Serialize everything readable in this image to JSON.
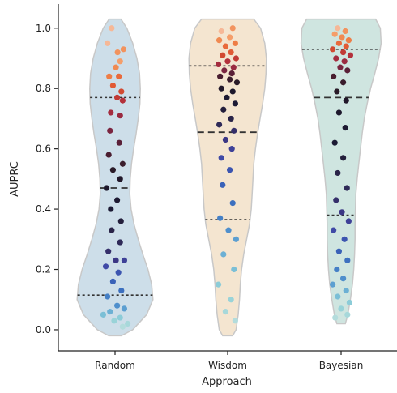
{
  "chart_data": {
    "type": "scatter",
    "subtype": "violin-strip",
    "title": "",
    "xlabel": "Approach",
    "ylabel": "AUPRC",
    "ylim": [
      -0.07,
      1.08
    ],
    "yticks": [
      0.0,
      0.2,
      0.4,
      0.6,
      0.8,
      1.0
    ],
    "ytick_labels": [
      "0.0",
      "0.2",
      "0.4",
      "0.6",
      "0.8",
      "1.0"
    ],
    "categories": [
      "Random",
      "Wisdom",
      "Bayesian"
    ],
    "grid": false,
    "legend": "none",
    "colors": {
      "Random": "#cddee9",
      "Wisdom": "#f4e5d0",
      "Bayesian": "#cfe5e0",
      "violin_edge": "#c8c8c8",
      "quartile_line": "#333333",
      "axis": "#222222"
    },
    "series": [
      {
        "category": "Random",
        "violin_min": -0.02,
        "violin_max": 1.03,
        "quartiles": [
          0.115,
          0.47,
          0.77
        ],
        "profile": [
          [
            -0.02,
            0.15
          ],
          [
            0.0,
            0.42
          ],
          [
            0.05,
            0.75
          ],
          [
            0.1,
            0.9
          ],
          [
            0.15,
            0.87
          ],
          [
            0.2,
            0.78
          ],
          [
            0.25,
            0.66
          ],
          [
            0.3,
            0.55
          ],
          [
            0.35,
            0.45
          ],
          [
            0.4,
            0.38
          ],
          [
            0.45,
            0.35
          ],
          [
            0.5,
            0.36
          ],
          [
            0.55,
            0.39
          ],
          [
            0.6,
            0.44
          ],
          [
            0.65,
            0.5
          ],
          [
            0.7,
            0.55
          ],
          [
            0.75,
            0.59
          ],
          [
            0.8,
            0.6
          ],
          [
            0.85,
            0.58
          ],
          [
            0.9,
            0.52
          ],
          [
            0.95,
            0.42
          ],
          [
            1.0,
            0.28
          ],
          [
            1.03,
            0.14
          ]
        ],
        "points": [
          [
            -0.08,
            1.0,
            "#f6b897"
          ],
          [
            0.06,
            0.92,
            "#f2935e"
          ],
          [
            0.12,
            0.89,
            "#f59e6a"
          ],
          [
            -0.18,
            0.95,
            "#f6b897"
          ],
          [
            0.2,
            0.93,
            "#f2935e"
          ],
          [
            0.02,
            0.87,
            "#f08a52"
          ],
          [
            -0.14,
            0.84,
            "#ee7d46"
          ],
          [
            0.09,
            0.84,
            "#e96a3c"
          ],
          [
            -0.05,
            0.81,
            "#e15a35"
          ],
          [
            0.15,
            0.79,
            "#d24a32"
          ],
          [
            0.05,
            0.77,
            "#c13a35"
          ],
          [
            0.18,
            0.76,
            "#b3313b"
          ],
          [
            -0.1,
            0.72,
            "#a42c3f"
          ],
          [
            0.12,
            0.71,
            "#9a2a40"
          ],
          [
            -0.12,
            0.66,
            "#7a2540"
          ],
          [
            0.1,
            0.62,
            "#5a2038"
          ],
          [
            -0.15,
            0.58,
            "#4a1e30"
          ],
          [
            0.18,
            0.55,
            "#3a1d2c"
          ],
          [
            -0.05,
            0.53,
            "#2a1b28"
          ],
          [
            0.12,
            0.5,
            "#22182a"
          ],
          [
            -0.2,
            0.47,
            "#1d182c"
          ],
          [
            0.05,
            0.43,
            "#1e1a32"
          ],
          [
            -0.1,
            0.4,
            "#1c1a34"
          ],
          [
            0.14,
            0.36,
            "#241f3c"
          ],
          [
            -0.08,
            0.33,
            "#2a2448"
          ],
          [
            0.12,
            0.29,
            "#2f2a58"
          ],
          [
            -0.16,
            0.26,
            "#352f6a"
          ],
          [
            0.02,
            0.23,
            "#3b3785"
          ],
          [
            0.22,
            0.23,
            "#3e4198"
          ],
          [
            -0.22,
            0.21,
            "#404aa6"
          ],
          [
            0.08,
            0.19,
            "#3c55b0"
          ],
          [
            -0.05,
            0.16,
            "#3a62b8"
          ],
          [
            0.15,
            0.13,
            "#3d70bf"
          ],
          [
            -0.18,
            0.11,
            "#4580c6"
          ],
          [
            0.05,
            0.08,
            "#4f8fcc"
          ],
          [
            0.22,
            0.07,
            "#5c9fd1"
          ],
          [
            -0.12,
            0.06,
            "#6cb0d4"
          ],
          [
            -0.28,
            0.05,
            "#7bbfd6"
          ],
          [
            0.12,
            0.04,
            "#8cccd8"
          ],
          [
            -0.02,
            0.03,
            "#99d3d8"
          ],
          [
            0.3,
            0.02,
            "#a7d8da"
          ],
          [
            0.18,
            0.01,
            "#b3dcdc"
          ]
        ]
      },
      {
        "category": "Wisdom",
        "violin_min": -0.02,
        "violin_max": 1.03,
        "quartiles": [
          0.365,
          0.655,
          0.875
        ],
        "profile": [
          [
            -0.02,
            0.12
          ],
          [
            0.0,
            0.2
          ],
          [
            0.05,
            0.25
          ],
          [
            0.1,
            0.28
          ],
          [
            0.15,
            0.3
          ],
          [
            0.2,
            0.33
          ],
          [
            0.25,
            0.38
          ],
          [
            0.3,
            0.45
          ],
          [
            0.35,
            0.52
          ],
          [
            0.4,
            0.56
          ],
          [
            0.45,
            0.58
          ],
          [
            0.5,
            0.6
          ],
          [
            0.55,
            0.62
          ],
          [
            0.6,
            0.66
          ],
          [
            0.65,
            0.71
          ],
          [
            0.7,
            0.77
          ],
          [
            0.75,
            0.83
          ],
          [
            0.8,
            0.88
          ],
          [
            0.85,
            0.91
          ],
          [
            0.9,
            0.92
          ],
          [
            0.95,
            0.88
          ],
          [
            1.0,
            0.78
          ],
          [
            1.03,
            0.62
          ]
        ],
        "points": [
          [
            -0.15,
            0.99,
            "#f6b897"
          ],
          [
            0.12,
            1.0,
            "#f2935e"
          ],
          [
            0.05,
            0.97,
            "#f59e6a"
          ],
          [
            -0.2,
            0.96,
            "#f08a52"
          ],
          [
            0.18,
            0.95,
            "#ee7d46"
          ],
          [
            -0.05,
            0.94,
            "#e96a3c"
          ],
          [
            0.08,
            0.92,
            "#e15a35"
          ],
          [
            -0.12,
            0.91,
            "#d24a32"
          ],
          [
            0.2,
            0.9,
            "#c13a35"
          ],
          [
            0.0,
            0.89,
            "#b3313b"
          ],
          [
            -0.22,
            0.88,
            "#a42c3f"
          ],
          [
            0.14,
            0.87,
            "#9a2a40"
          ],
          [
            -0.08,
            0.86,
            "#7a2540"
          ],
          [
            0.1,
            0.85,
            "#5a2038"
          ],
          [
            -0.18,
            0.84,
            "#4a1e30"
          ],
          [
            0.05,
            0.83,
            "#3a1d2c"
          ],
          [
            0.22,
            0.82,
            "#2a1b28"
          ],
          [
            -0.15,
            0.8,
            "#22182a"
          ],
          [
            0.12,
            0.79,
            "#1d182c"
          ],
          [
            -0.02,
            0.77,
            "#1e1a32"
          ],
          [
            0.18,
            0.75,
            "#1c1a34"
          ],
          [
            -0.1,
            0.73,
            "#241f3c"
          ],
          [
            0.08,
            0.7,
            "#2a2448"
          ],
          [
            -0.2,
            0.68,
            "#2f2a58"
          ],
          [
            0.15,
            0.66,
            "#352f6a"
          ],
          [
            -0.05,
            0.63,
            "#3b3785"
          ],
          [
            0.1,
            0.6,
            "#3e4198"
          ],
          [
            -0.15,
            0.57,
            "#404aa6"
          ],
          [
            0.05,
            0.53,
            "#3c55b0"
          ],
          [
            -0.12,
            0.48,
            "#3a62b8"
          ],
          [
            0.12,
            0.42,
            "#3d70bf"
          ],
          [
            -0.18,
            0.37,
            "#4580c6"
          ],
          [
            0.02,
            0.33,
            "#4f8fcc"
          ],
          [
            0.2,
            0.3,
            "#5c9fd1"
          ],
          [
            -0.1,
            0.25,
            "#6cb0d4"
          ],
          [
            0.15,
            0.2,
            "#7bbfd6"
          ],
          [
            -0.22,
            0.15,
            "#8cccd8"
          ],
          [
            0.08,
            0.1,
            "#99d3d8"
          ],
          [
            -0.05,
            0.06,
            "#a7d8da"
          ],
          [
            0.18,
            0.03,
            "#b3dcdc"
          ]
        ]
      },
      {
        "category": "Bayesian",
        "violin_min": 0.02,
        "violin_max": 1.03,
        "quartiles": [
          0.38,
          0.77,
          0.93
        ],
        "profile": [
          [
            0.02,
            0.1
          ],
          [
            0.05,
            0.16
          ],
          [
            0.1,
            0.22
          ],
          [
            0.15,
            0.27
          ],
          [
            0.2,
            0.3
          ],
          [
            0.25,
            0.32
          ],
          [
            0.3,
            0.33
          ],
          [
            0.35,
            0.33
          ],
          [
            0.4,
            0.34
          ],
          [
            0.45,
            0.35
          ],
          [
            0.5,
            0.38
          ],
          [
            0.55,
            0.42
          ],
          [
            0.6,
            0.46
          ],
          [
            0.65,
            0.5
          ],
          [
            0.7,
            0.55
          ],
          [
            0.75,
            0.62
          ],
          [
            0.8,
            0.7
          ],
          [
            0.85,
            0.8
          ],
          [
            0.9,
            0.89
          ],
          [
            0.95,
            0.95
          ],
          [
            1.0,
            0.93
          ],
          [
            1.03,
            0.82
          ]
        ],
        "points": [
          [
            -0.08,
            1.0,
            "#f6b897"
          ],
          [
            0.1,
            0.99,
            "#f2935e"
          ],
          [
            -0.15,
            0.98,
            "#f59e6a"
          ],
          [
            0.02,
            0.97,
            "#f08a52"
          ],
          [
            0.18,
            0.96,
            "#ee7d46"
          ],
          [
            -0.05,
            0.95,
            "#e96a3c"
          ],
          [
            0.12,
            0.94,
            "#e15a35"
          ],
          [
            -0.2,
            0.93,
            "#d24a32"
          ],
          [
            0.05,
            0.92,
            "#c13a35"
          ],
          [
            0.22,
            0.91,
            "#b3313b"
          ],
          [
            -0.12,
            0.9,
            "#a42c3f"
          ],
          [
            0.08,
            0.89,
            "#9a2a40"
          ],
          [
            -0.02,
            0.87,
            "#7a2540"
          ],
          [
            0.15,
            0.86,
            "#5a2038"
          ],
          [
            -0.18,
            0.84,
            "#4a1e30"
          ],
          [
            0.05,
            0.82,
            "#3a1d2c"
          ],
          [
            -0.1,
            0.79,
            "#2a1b28"
          ],
          [
            0.12,
            0.76,
            "#22182a"
          ],
          [
            -0.05,
            0.72,
            "#1d182c"
          ],
          [
            0.1,
            0.67,
            "#1e1a32"
          ],
          [
            -0.15,
            0.62,
            "#1c1a34"
          ],
          [
            0.05,
            0.57,
            "#241f3c"
          ],
          [
            -0.08,
            0.52,
            "#2a2448"
          ],
          [
            0.14,
            0.47,
            "#2f2a58"
          ],
          [
            -0.12,
            0.43,
            "#352f6a"
          ],
          [
            0.02,
            0.39,
            "#3b3785"
          ],
          [
            0.18,
            0.36,
            "#3e4198"
          ],
          [
            -0.18,
            0.33,
            "#404aa6"
          ],
          [
            0.08,
            0.3,
            "#3c55b0"
          ],
          [
            -0.05,
            0.26,
            "#3a62b8"
          ],
          [
            0.15,
            0.23,
            "#3d70bf"
          ],
          [
            -0.1,
            0.2,
            "#4580c6"
          ],
          [
            0.05,
            0.17,
            "#4f8fcc"
          ],
          [
            -0.2,
            0.15,
            "#5c9fd1"
          ],
          [
            0.12,
            0.13,
            "#6cb0d4"
          ],
          [
            -0.08,
            0.11,
            "#7bbfd6"
          ],
          [
            0.2,
            0.09,
            "#8cccd8"
          ],
          [
            0.0,
            0.07,
            "#99d3d8"
          ],
          [
            0.15,
            0.05,
            "#a7d8da"
          ],
          [
            -0.14,
            0.04,
            "#b3dcdc"
          ]
        ]
      }
    ]
  }
}
